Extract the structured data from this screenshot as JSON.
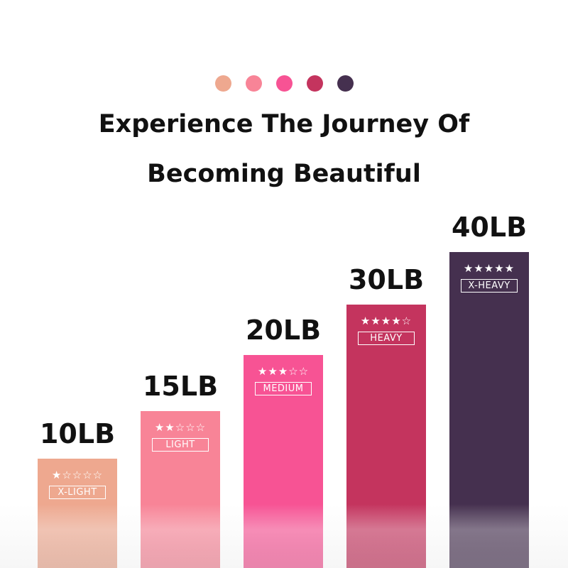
{
  "palette": [
    "#eea88f",
    "#f88497",
    "#f75394",
    "#c4345e",
    "#45304f"
  ],
  "title_line1": "Experience The Journey Of",
  "title_line2": "Becoming Beautiful",
  "bands": [
    {
      "weight": "10LB",
      "level": "X-LIGHT",
      "stars": "★☆☆☆☆",
      "rating": 1,
      "color": "#eea88f"
    },
    {
      "weight": "15LB",
      "level": "LIGHT",
      "stars": "★★☆☆☆",
      "rating": 2,
      "color": "#f88497"
    },
    {
      "weight": "20LB",
      "level": "MEDIUM",
      "stars": "★★★☆☆",
      "rating": 3,
      "color": "#f75394"
    },
    {
      "weight": "30LB",
      "level": "HEAVY",
      "stars": "★★★★☆",
      "rating": 4,
      "color": "#c4345e"
    },
    {
      "weight": "40LB",
      "level": "X-HEAVY",
      "stars": "★★★★★",
      "rating": 5,
      "color": "#45304f"
    }
  ]
}
